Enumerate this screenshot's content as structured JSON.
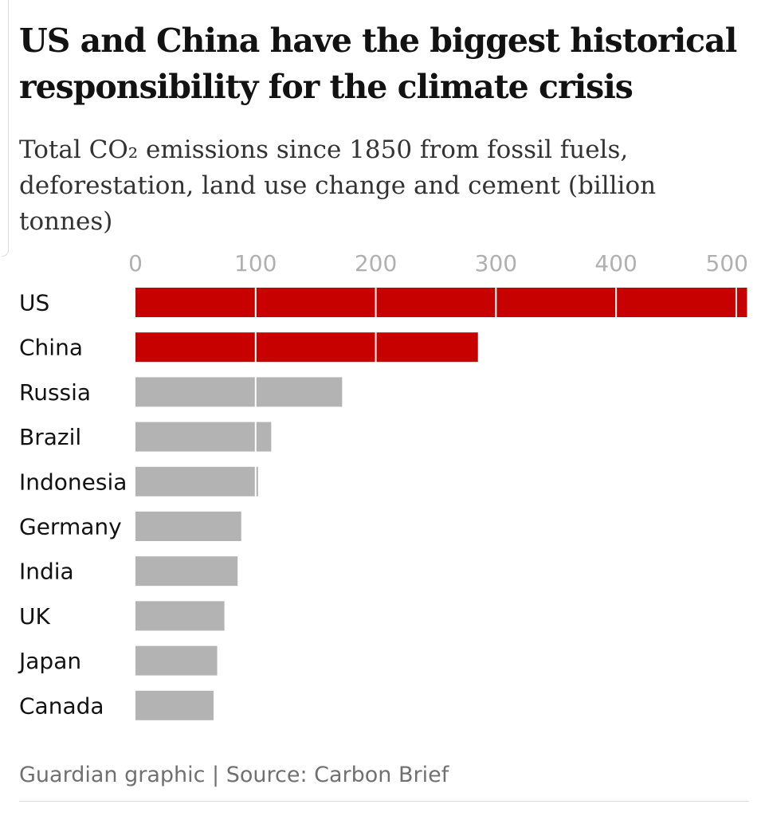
{
  "title": "US and China have the biggest historical responsibility for the climate crisis",
  "subtitle": "Total CO₂ emissions since 1850 from fossil fuels, deforestation, land use change and cement (billion tonnes)",
  "source": "Guardian graphic | Source: Carbon Brief",
  "colors": {
    "highlight": "#c70000",
    "default": "#b3b3b3",
    "grid": "#ffffff",
    "tick": "#b0b0b0",
    "label": "#121212"
  },
  "chart_data": {
    "type": "bar",
    "orientation": "horizontal",
    "title": "US and China have the biggest historical responsibility for the climate crisis",
    "subtitle": "Total CO₂ emissions since 1850 from fossil fuels, deforestation, land use change and cement (billion tonnes)",
    "xlabel": "",
    "ylabel": "",
    "xlim": [
      0,
      510
    ],
    "xticks": [
      0,
      100,
      200,
      300,
      400,
      500
    ],
    "grid": true,
    "categories": [
      "US",
      "China",
      "Russia",
      "Brazil",
      "Indonesia",
      "Germany",
      "India",
      "UK",
      "Japan",
      "Canada"
    ],
    "values": [
      509,
      285,
      172,
      113,
      102,
      88,
      85,
      74,
      68,
      65
    ],
    "highlighted": [
      "US",
      "China"
    ]
  }
}
